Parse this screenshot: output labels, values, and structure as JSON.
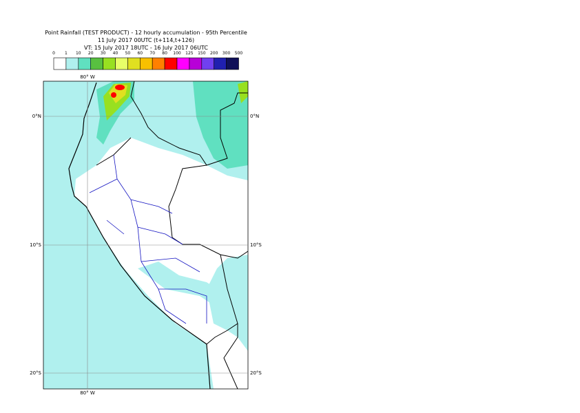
{
  "header": {
    "title": "Point Rainfall (TEST PRODUCT) - 12 hourly accumulation - 95th Percentile",
    "issue": "11 July 2017 00UTC (t+114,t+126)",
    "validity": "VT: 15 July 2017 18UTC - 16 July 2017 06UTC"
  },
  "colorbar": {
    "labels": [
      0,
      1,
      10,
      20,
      30,
      40,
      50,
      60,
      70,
      80,
      100,
      125,
      150,
      200,
      300,
      500
    ],
    "colors": [
      "#ffffff",
      "#b0f0ee",
      "#60e0c0",
      "#58c040",
      "#98e020",
      "#e8ff68",
      "#e0e020",
      "#f8c000",
      "#ff8000",
      "#ff0000",
      "#ff00ff",
      "#b800d8",
      "#7040f0",
      "#2020b0",
      "#101058"
    ]
  },
  "map": {
    "lon_label": "80° W",
    "lat_labels": [
      "0°N",
      "10°S",
      "20°S"
    ]
  }
}
